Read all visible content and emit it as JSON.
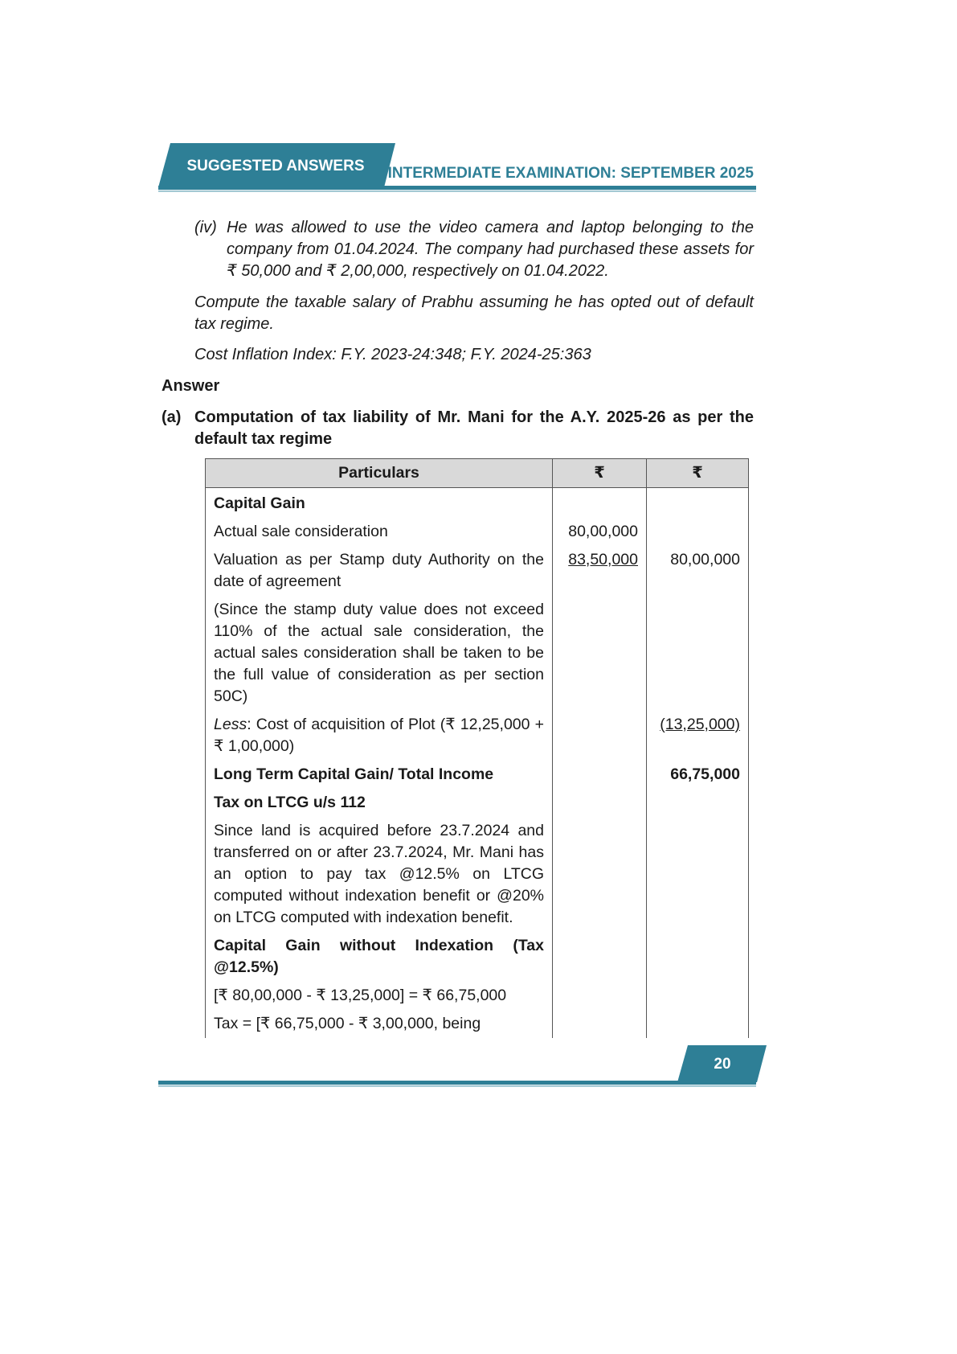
{
  "header": {
    "left": "SUGGESTED ANSWERS",
    "right": "INTERMEDIATE EXAMINATION: SEPTEMBER 2025"
  },
  "question": {
    "item": {
      "marker": "(iv)",
      "text": "He was allowed to use the video camera and laptop belonging to the company from 01.04.2024. The company had purchased these assets for ₹ 50,000 and ₹ 2,00,000, respectively on 01.04.2022."
    },
    "paragraphs": [
      "Compute the taxable salary of Prabhu assuming he has opted out of default tax regime.",
      "Cost Inflation Index: F.Y. 2023-24:348; F.Y. 2024-25:363"
    ]
  },
  "answer": {
    "heading": "Answer",
    "marker": "(a)",
    "title": "Computation of tax liability of Mr. Mani for the A.Y. 2025-26 as per the default tax regime"
  },
  "table": {
    "header": [
      "Particulars",
      "₹",
      "₹"
    ],
    "rows": [
      {
        "particulars": "Capital Gain"
      },
      {
        "particulars": "Actual sale consideration",
        "amount_1": "80,00,000"
      },
      {
        "particulars": "Valuation as per Stamp duty Authority on the date of agreement",
        "amount_1": "83,50,000",
        "amount_2": "80,00,000"
      },
      {
        "particulars": "(Since the stamp duty value does not exceed 110% of the actual sale consideration, the actual sales consideration shall be taken to be the full value of consideration as per section 50C)"
      },
      {
        "particulars": [
          "Less",
          ": Cost of acquisition of Plot (₹ 12,25,000 + ₹ 1,00,000)"
        ],
        "amount_2": "(13,25,000)"
      },
      {
        "particulars": "Long Term Capital Gain/ Total Income",
        "amount_2": "66,75,000"
      },
      {
        "particulars": "Tax on LTCG u/s 112"
      },
      {
        "particulars": "Since land is acquired before 23.7.2024 and transferred on or after 23.7.2024, Mr. Mani has an option to pay tax @12.5% on LTCG computed without indexation benefit or @20% on LTCG computed with indexation benefit."
      },
      {
        "particulars": "Capital Gain without Indexation (Tax @12.5%)"
      },
      {
        "particulars": "[₹ 80,00,000 - ₹ 13,25,000] = ₹ 66,75,000"
      },
      {
        "particulars": "Tax = [₹ 66,75,000 - ₹ 3,00,000, being"
      }
    ]
  },
  "footer": {
    "page": "20"
  }
}
